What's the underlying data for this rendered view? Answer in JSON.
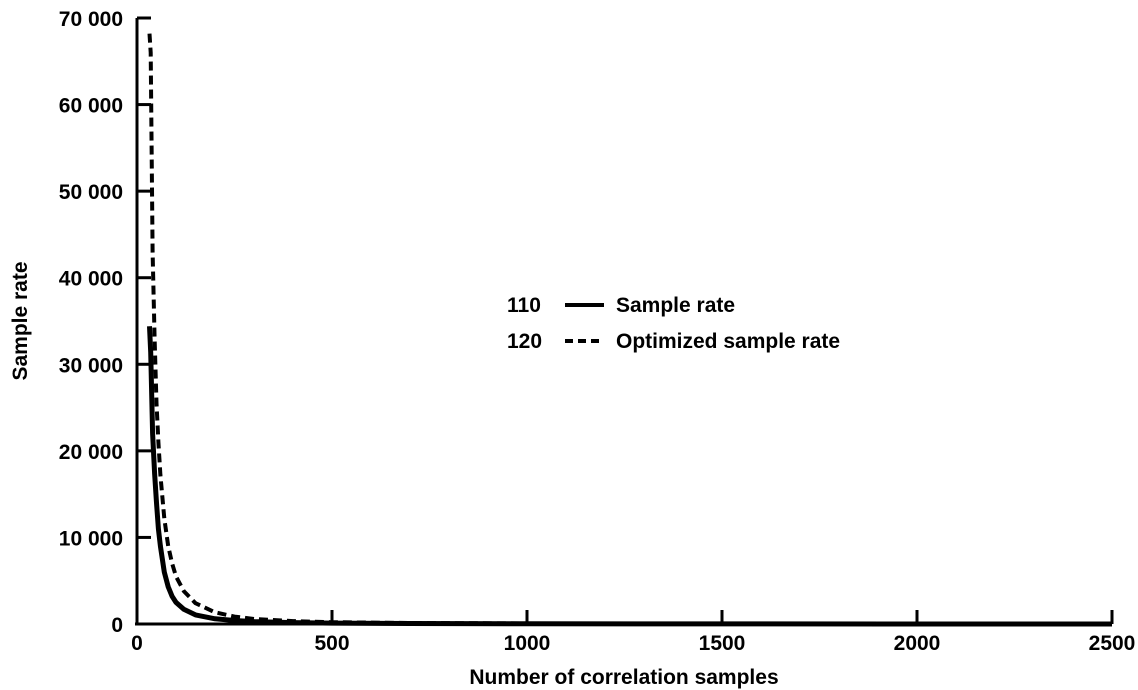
{
  "chart_data": {
    "type": "line",
    "title": "",
    "xlabel": "Number of correlation samples",
    "ylabel": "Sample rate",
    "xlim": [
      0,
      2500
    ],
    "ylim": [
      0,
      70000
    ],
    "xticks": [
      0,
      500,
      1000,
      1500,
      2000,
      2500
    ],
    "yticks": [
      0,
      10000,
      20000,
      30000,
      40000,
      50000,
      60000,
      70000
    ],
    "xtick_labels": [
      "0",
      "500",
      "1000",
      "1500",
      "2000",
      "2500"
    ],
    "ytick_labels": [
      "0",
      "10 000",
      "20 000",
      "30 000",
      "40 000",
      "50 000",
      "60 000",
      "70 000"
    ],
    "grid": false,
    "legend_position": "center",
    "series": [
      {
        "name": "Sample rate",
        "ref": "110",
        "style": "solid",
        "color": "#000000",
        "x": [
          32,
          35,
          40,
          45,
          50,
          55,
          60,
          70,
          80,
          90,
          100,
          120,
          150,
          200,
          250,
          300,
          400,
          500,
          700,
          1000,
          1500,
          2000,
          2500
        ],
        "y": [
          34400,
          31400,
          22000,
          17400,
          14000,
          11000,
          9000,
          6000,
          4300,
          3200,
          2500,
          1700,
          1050,
          600,
          400,
          280,
          160,
          100,
          55,
          25,
          10,
          5,
          3
        ]
      },
      {
        "name": "Optimized sample rate",
        "ref": "120",
        "style": "dashed",
        "color": "#000000",
        "x": [
          32,
          35,
          40,
          45,
          50,
          55,
          60,
          70,
          80,
          90,
          100,
          120,
          150,
          200,
          250,
          300,
          400,
          500,
          700,
          1000,
          1500,
          2000,
          2500
        ],
        "y": [
          68200,
          66000,
          43000,
          33000,
          25500,
          21000,
          17200,
          12200,
          9000,
          7000,
          5500,
          3800,
          2400,
          1350,
          850,
          580,
          330,
          210,
          110,
          55,
          25,
          14,
          9
        ]
      }
    ]
  }
}
